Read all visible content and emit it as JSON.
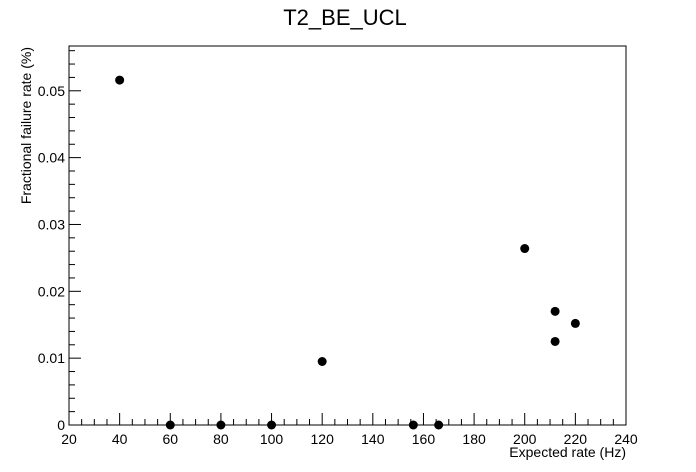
{
  "chart_data": {
    "type": "scatter",
    "title": "T2_BE_UCL",
    "xlabel": "Expected rate (Hz)",
    "ylabel": "Fractional failure rate (%)",
    "xlim": [
      20,
      240
    ],
    "ylim": [
      0,
      0.0567
    ],
    "x_ticks": [
      20,
      40,
      60,
      80,
      100,
      120,
      140,
      160,
      180,
      200,
      220,
      240
    ],
    "x_tick_labels": [
      "20",
      "40",
      "60",
      "80",
      "100",
      "120",
      "140",
      "160",
      "180",
      "200",
      "220",
      "240"
    ],
    "y_ticks": [
      0,
      0.01,
      0.02,
      0.03,
      0.04,
      0.05
    ],
    "y_tick_labels": [
      "0",
      "0.01",
      "0.02",
      "0.03",
      "0.04",
      "0.05"
    ],
    "grid": false,
    "legend": "none",
    "marker_color": "#000000",
    "points": [
      {
        "x": 40,
        "y": 0.0516
      },
      {
        "x": 60,
        "y": 0
      },
      {
        "x": 80,
        "y": 0
      },
      {
        "x": 100,
        "y": 0
      },
      {
        "x": 120,
        "y": 0.0095
      },
      {
        "x": 156,
        "y": 0
      },
      {
        "x": 166,
        "y": 0
      },
      {
        "x": 200,
        "y": 0.0264
      },
      {
        "x": 212,
        "y": 0.017
      },
      {
        "x": 212,
        "y": 0.0125
      },
      {
        "x": 220,
        "y": 0.0152
      }
    ]
  }
}
